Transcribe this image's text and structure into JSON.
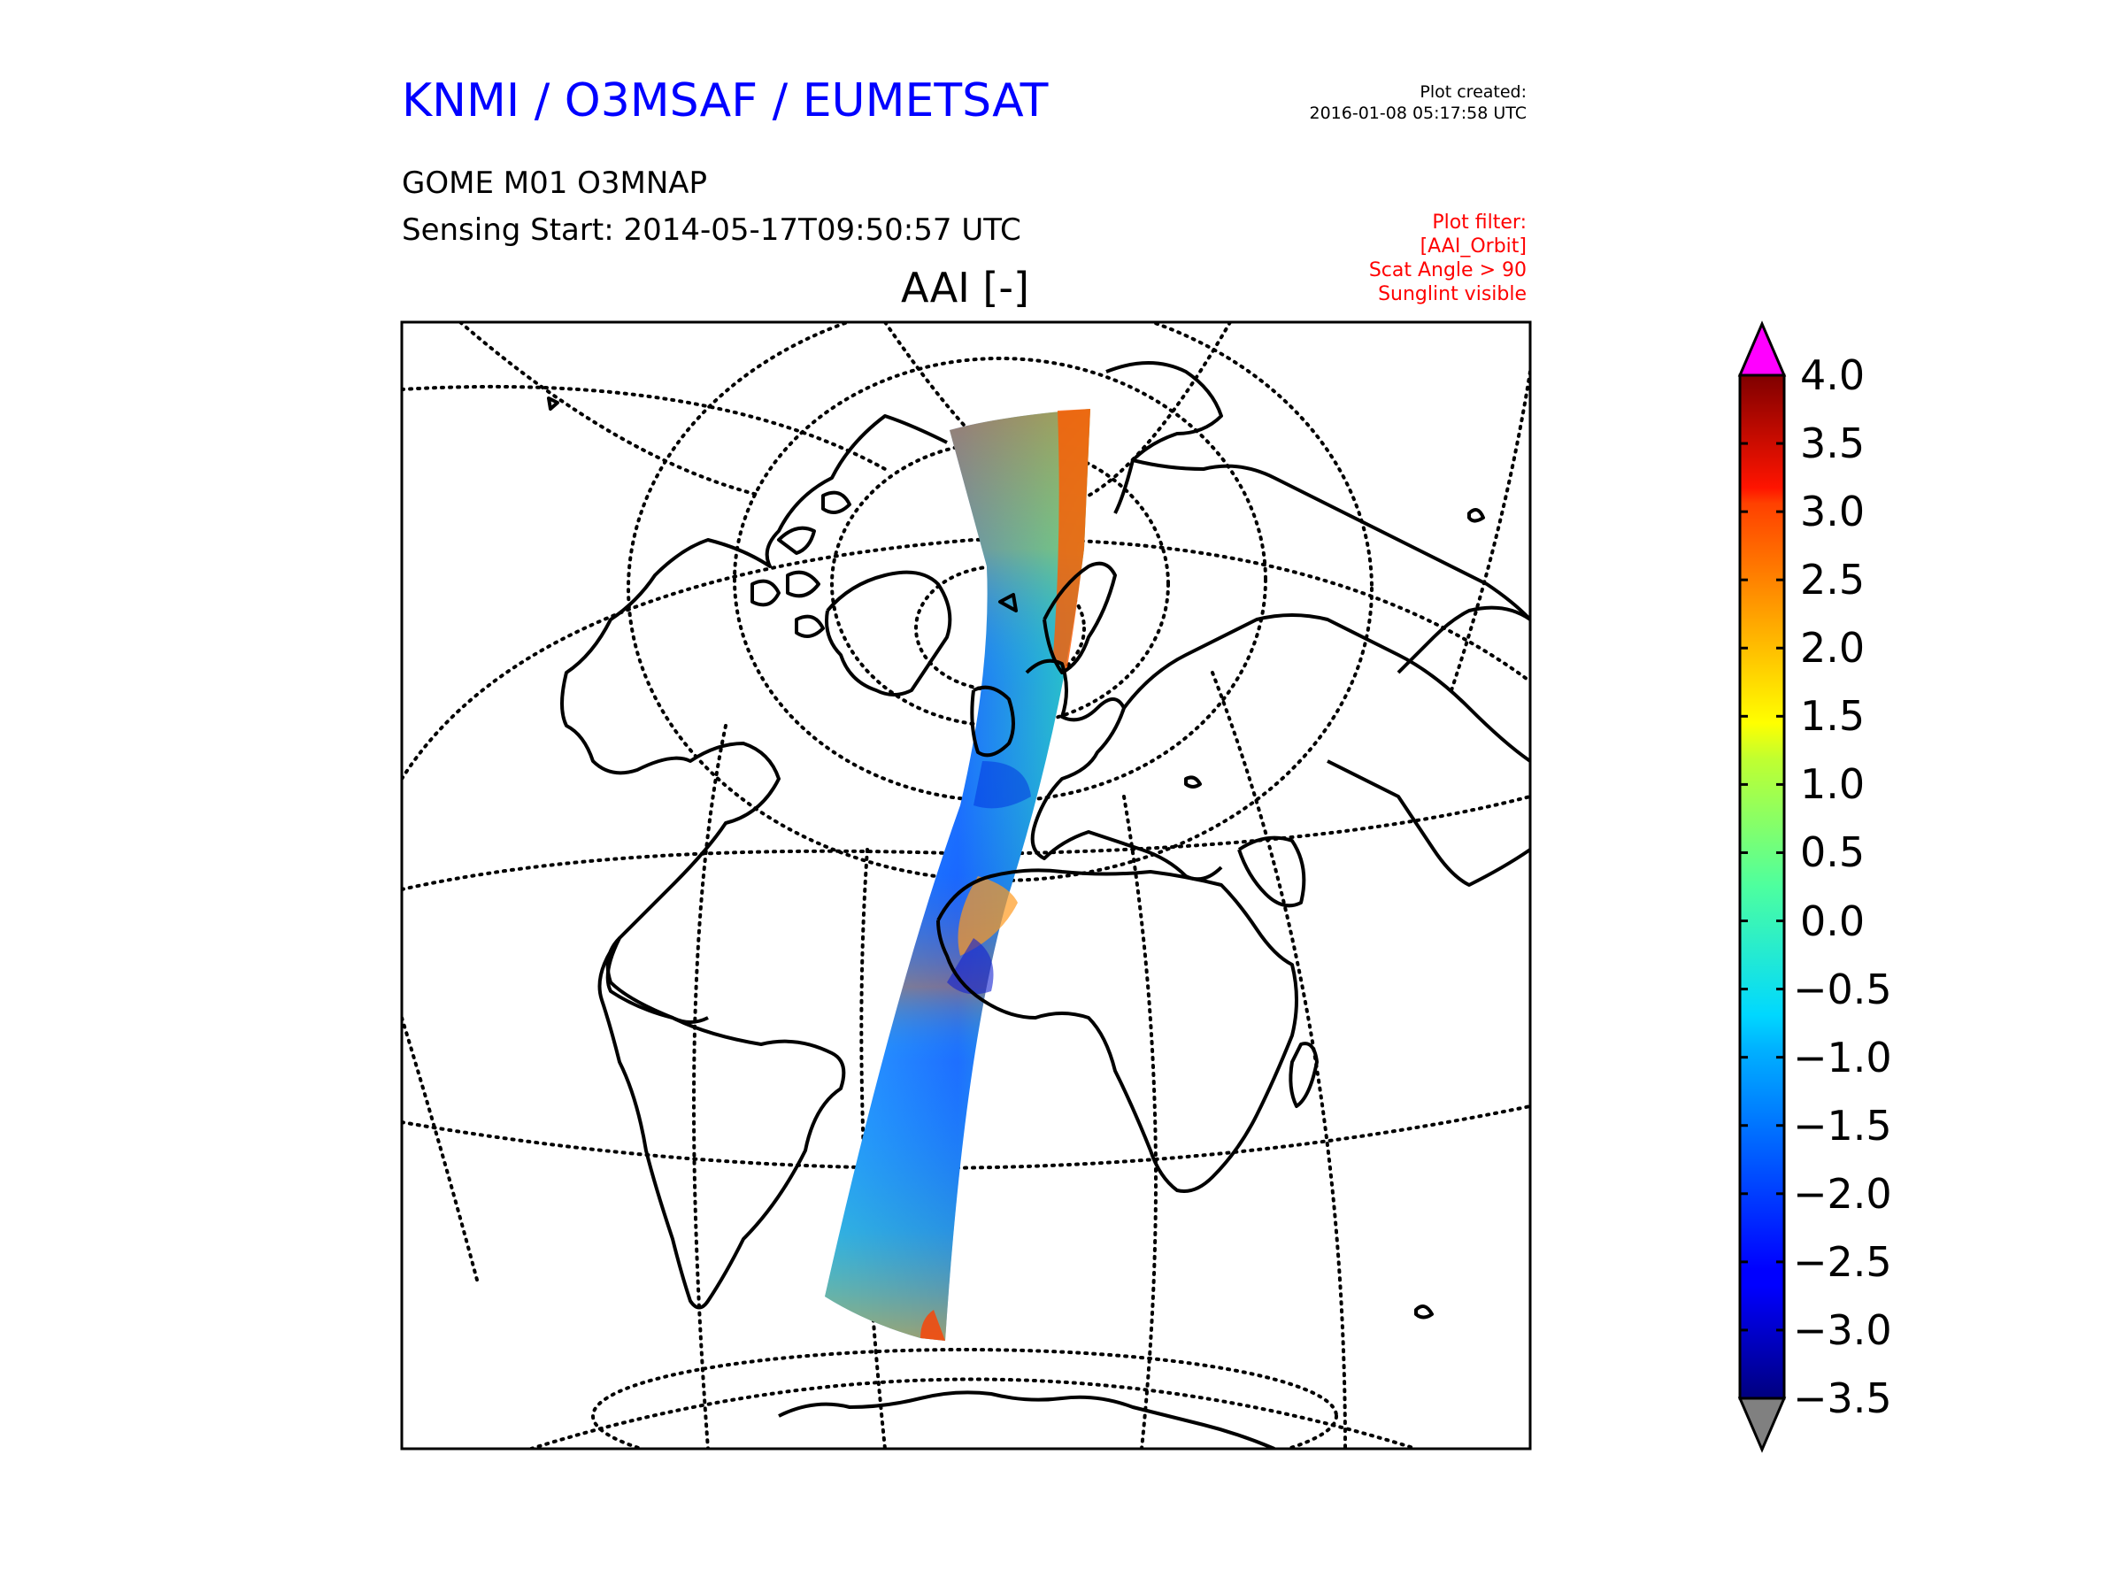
{
  "header": {
    "title": "KNMI / O3MSAF / EUMETSAT",
    "plot_created_label": "Plot created:",
    "plot_created_time": "2016-01-08 05:17:58 UTC",
    "product": "GOME M01 O3MNAP",
    "sensing_start": "Sensing Start: 2014-05-17T09:50:57 UTC"
  },
  "filter": {
    "heading": "Plot filter:",
    "lines": [
      "[AAI_Orbit]",
      "Scat Angle > 90",
      "Sunglint visible"
    ]
  },
  "map": {
    "title": "AAI [-]",
    "projection": "orthographic",
    "graticule": "dotted",
    "coastlines": "black"
  },
  "colorbar": {
    "min": -3.5,
    "max": 4.0,
    "ticks": [
      "4.0",
      "3.5",
      "3.0",
      "2.5",
      "2.0",
      "1.5",
      "1.0",
      "0.5",
      "0.0",
      "−0.5",
      "−1.0",
      "−1.5",
      "−2.0",
      "−2.5",
      "−3.0",
      "−3.5"
    ],
    "colormap": "jet",
    "over_color": "#ff00ff",
    "under_color": "#808080"
  }
}
